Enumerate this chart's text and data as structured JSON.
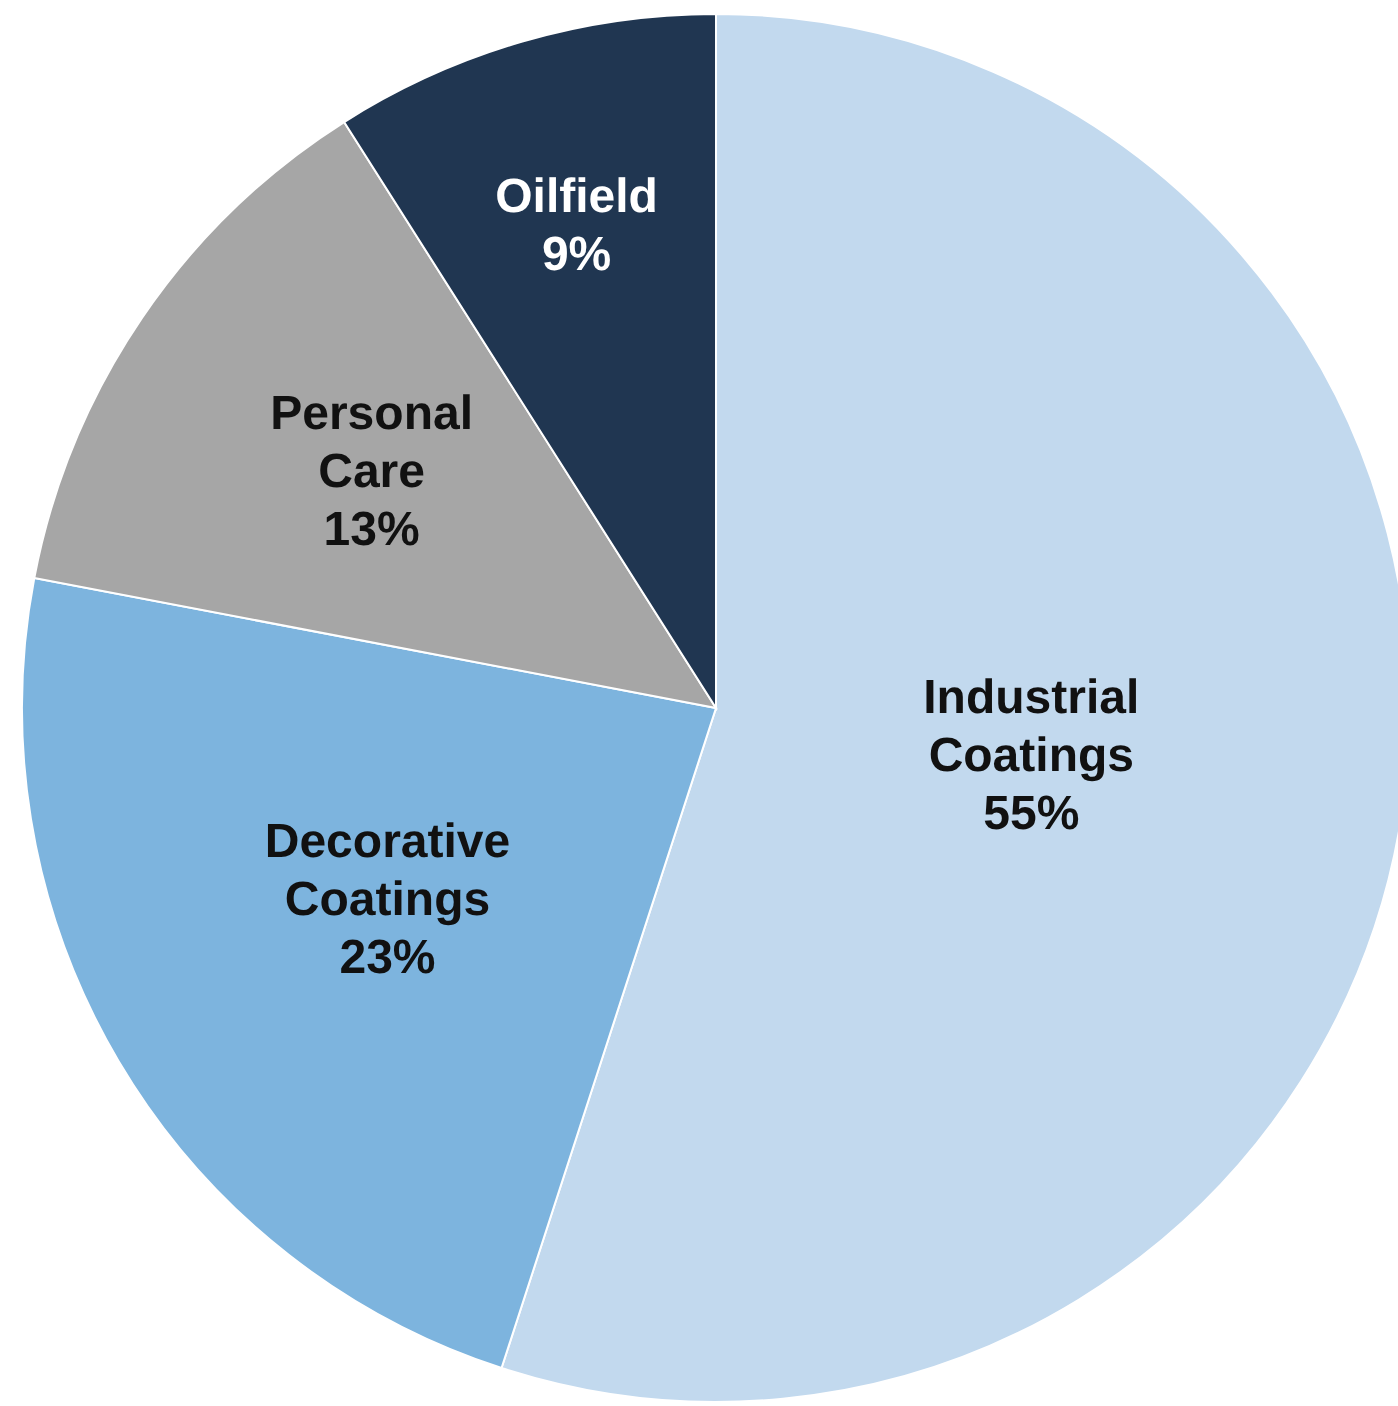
{
  "chart_data": {
    "type": "pie",
    "categories": [
      "Industrial Coatings",
      "Decorative Coatings",
      "Personal Care",
      "Oilfield"
    ],
    "values": [
      55,
      23,
      13,
      9
    ],
    "colors": [
      "#c2d9ee",
      "#7db4de",
      "#a6a6a6",
      "#203651"
    ],
    "value_labels": [
      "55%",
      "23%",
      "13%",
      "9%"
    ]
  }
}
